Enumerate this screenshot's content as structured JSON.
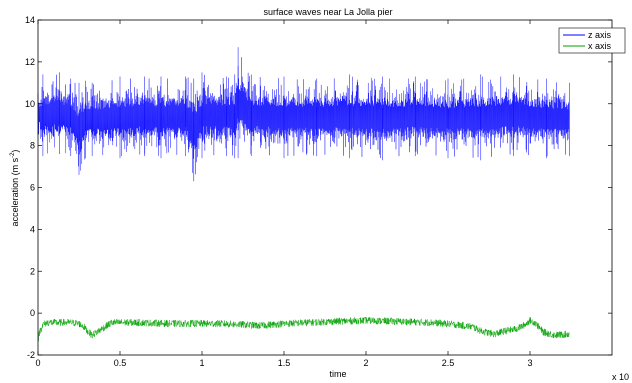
{
  "chart_data": {
    "type": "line",
    "title": "surface waves near La Jolla pier",
    "xlabel": "time",
    "ylabel": "acceleration (m s",
    "ylabel_exponent": "-2",
    "ylabel_suffix": ")",
    "x_multiplier_label": "x 10",
    "xlim": [
      0,
      3.5
    ],
    "ylim": [
      -2,
      14
    ],
    "x_ticks": [
      {
        "value": 0,
        "label": "0"
      },
      {
        "value": 0.5,
        "label": "0.5"
      },
      {
        "value": 1,
        "label": "1"
      },
      {
        "value": 1.5,
        "label": "1.5"
      },
      {
        "value": 2,
        "label": "2"
      },
      {
        "value": 2.5,
        "label": "2.5"
      },
      {
        "value": 3,
        "label": "3"
      }
    ],
    "y_ticks": [
      {
        "value": -2,
        "label": "-2"
      },
      {
        "value": 0,
        "label": "0"
      },
      {
        "value": 2,
        "label": "2"
      },
      {
        "value": 4,
        "label": "4"
      },
      {
        "value": 6,
        "label": "6"
      },
      {
        "value": 8,
        "label": "8"
      },
      {
        "value": 10,
        "label": "10"
      },
      {
        "value": 12,
        "label": "12"
      },
      {
        "value": 14,
        "label": "14"
      }
    ],
    "grid": false,
    "legend_position": "top-right",
    "series": [
      {
        "name": "z axis",
        "color": "#0000ff",
        "x": [
          0,
          0.03,
          0.13,
          0.2,
          0.25,
          0.29,
          0.33,
          0.5,
          0.65,
          0.75,
          0.9,
          0.95,
          1.0,
          1.15,
          1.2,
          1.22,
          1.3,
          1.5,
          1.7,
          1.9,
          2.1,
          2.3,
          2.5,
          2.7,
          2.9,
          3.1,
          3.24
        ],
        "max": [
          10.5,
          11.4,
          11.5,
          11.2,
          11.0,
          11.1,
          11.0,
          11.3,
          11.3,
          11.3,
          11.3,
          11.2,
          11.5,
          11.3,
          11.4,
          12.7,
          11.4,
          11.3,
          11.2,
          11.4,
          11.3,
          11.3,
          11.2,
          11.4,
          11.4,
          11.2,
          11.0
        ],
        "min": [
          8.5,
          7.5,
          7.6,
          7.5,
          6.6,
          7.4,
          7.5,
          7.4,
          7.5,
          7.4,
          7.5,
          6.3,
          7.4,
          7.5,
          7.4,
          7.4,
          7.5,
          7.4,
          7.5,
          7.4,
          7.3,
          7.5,
          7.4,
          7.3,
          7.5,
          7.4,
          7.5
        ]
      },
      {
        "name": "x axis",
        "color": "#00a000",
        "x": [
          0,
          0.01,
          0.03,
          0.06,
          0.1,
          0.15,
          0.2,
          0.25,
          0.28,
          0.3,
          0.33,
          0.38,
          0.45,
          0.6,
          0.8,
          0.95,
          1.1,
          1.25,
          1.35,
          1.5,
          1.8,
          2.0,
          2.2,
          2.4,
          2.55,
          2.65,
          2.7,
          2.78,
          2.85,
          2.92,
          2.97,
          3.0,
          3.03,
          3.08,
          3.15,
          3.24
        ],
        "y": [
          -1.3,
          -0.9,
          -0.55,
          -0.45,
          -0.45,
          -0.45,
          -0.45,
          -0.5,
          -0.65,
          -0.85,
          -1.05,
          -0.8,
          -0.45,
          -0.45,
          -0.5,
          -0.5,
          -0.5,
          -0.55,
          -0.6,
          -0.5,
          -0.4,
          -0.35,
          -0.4,
          -0.45,
          -0.55,
          -0.65,
          -0.85,
          -1.0,
          -0.85,
          -0.75,
          -0.55,
          -0.35,
          -0.45,
          -0.9,
          -1.05,
          -1.0
        ]
      }
    ]
  }
}
